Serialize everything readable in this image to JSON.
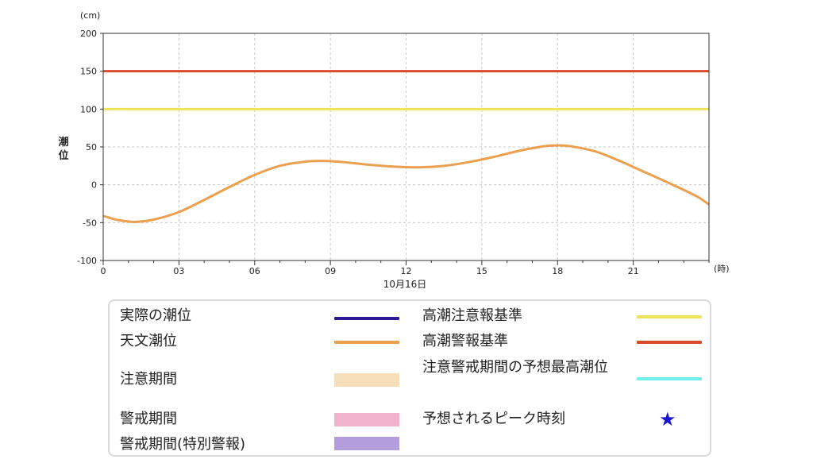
{
  "chart_data": {
    "type": "line",
    "ylabel": "潮位",
    "yunit": "(cm)",
    "xunit": "(時)",
    "xdate": "10月16日",
    "xlim": [
      0,
      24
    ],
    "ylim": [
      -100,
      200
    ],
    "yticks": [
      200,
      150,
      100,
      50,
      0,
      -50,
      -100
    ],
    "xticks": [
      0,
      3,
      6,
      9,
      12,
      15,
      18,
      21
    ],
    "xtick_labels": [
      "0",
      "03",
      "06",
      "09",
      "12",
      "15",
      "18",
      "21"
    ],
    "grid": true,
    "reference_lines": [
      {
        "name": "高潮警報基準",
        "value": 150,
        "color": "#d94a2b"
      },
      {
        "name": "高潮注意報基準",
        "value": 100,
        "color": "#ede45a"
      }
    ],
    "series": [
      {
        "name": "天文潮位",
        "color": "#eba050",
        "x": [
          0,
          0.5,
          1,
          1.3,
          2,
          3,
          4,
          5,
          6,
          7,
          8,
          8.7,
          9.5,
          10.5,
          11.5,
          12.5,
          13.5,
          14.5,
          15.5,
          16.5,
          17.5,
          18,
          18.5,
          19.5,
          20.5,
          21.5,
          22.5,
          23.5,
          24
        ],
        "values": [
          -41,
          -46,
          -48.5,
          -49,
          -46,
          -36,
          -20,
          -3,
          13,
          25,
          30.5,
          31.5,
          30,
          26.5,
          24,
          23,
          25,
          30,
          37,
          45,
          51,
          52,
          51,
          44,
          31,
          16,
          1,
          -15,
          -26
        ]
      }
    ]
  },
  "legend": {
    "items": [
      {
        "label": "実際の潮位",
        "symbol": "line",
        "color": "#2b1b8f"
      },
      {
        "label": "天文潮位",
        "symbol": "line",
        "color": "#eba050"
      },
      {
        "label": "注意期間",
        "symbol": "band",
        "color": "#f6dfba"
      },
      {
        "label": "警戒期間",
        "symbol": "band",
        "color": "#f0b3cc"
      },
      {
        "label": "警戒期間(特別警報)",
        "symbol": "band",
        "color": "#b39ddb"
      },
      {
        "label": "高潮注意報基準",
        "symbol": "line",
        "color": "#ede45a"
      },
      {
        "label": "高潮警報基準",
        "symbol": "line",
        "color": "#d94a2b"
      },
      {
        "label": "注意警戒期間の予想最高潮位",
        "symbol": "line",
        "color": "#6ff0ee"
      },
      {
        "label": "予想されるピーク時刻",
        "symbol": "star",
        "glyph": "★",
        "color": "#1a16d6"
      }
    ]
  }
}
